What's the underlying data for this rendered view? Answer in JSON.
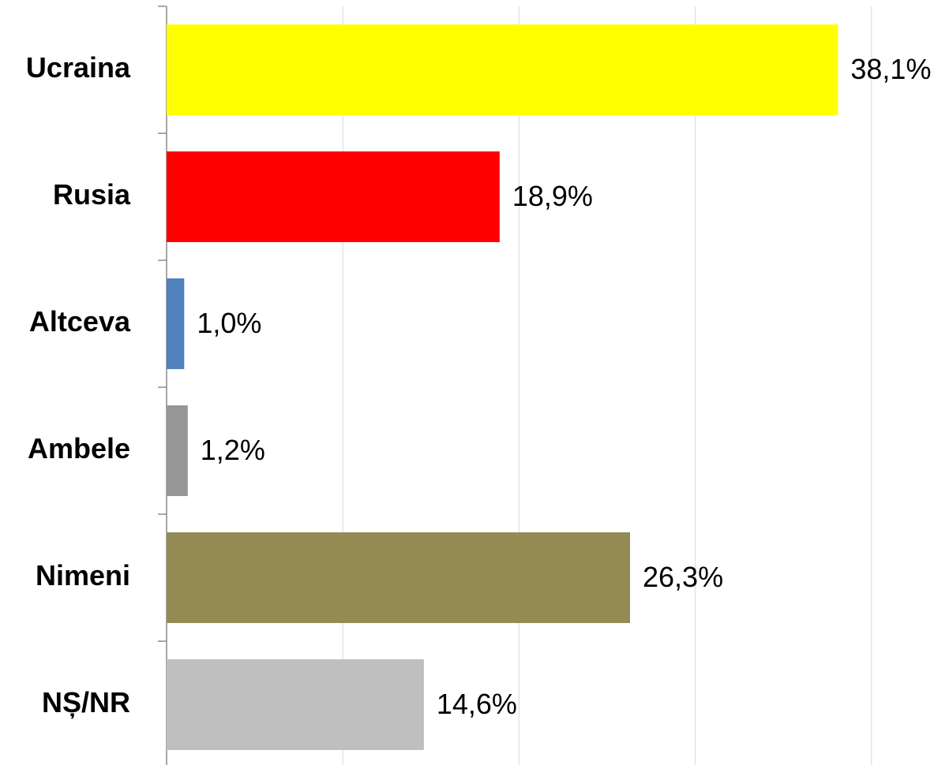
{
  "chart_data": {
    "type": "hbar",
    "categories": [
      "Ucraina",
      "Rusia",
      "Altceva",
      "Ambele",
      "Nimeni",
      "NȘ/NR"
    ],
    "values": [
      38.1,
      18.9,
      1.0,
      1.2,
      26.3,
      14.6
    ],
    "value_labels": [
      "38,1%",
      "18,9%",
      "1,0%",
      "1,2%",
      "26,3%",
      "14,6%"
    ],
    "colors": [
      "#ffff00",
      "#ff0000",
      "#4f81bd",
      "#969696",
      "#948a54",
      "#bfbfbf"
    ],
    "xlim": [
      0,
      44.4
    ],
    "xticks": [
      10,
      20,
      30,
      40
    ],
    "grid": true
  }
}
